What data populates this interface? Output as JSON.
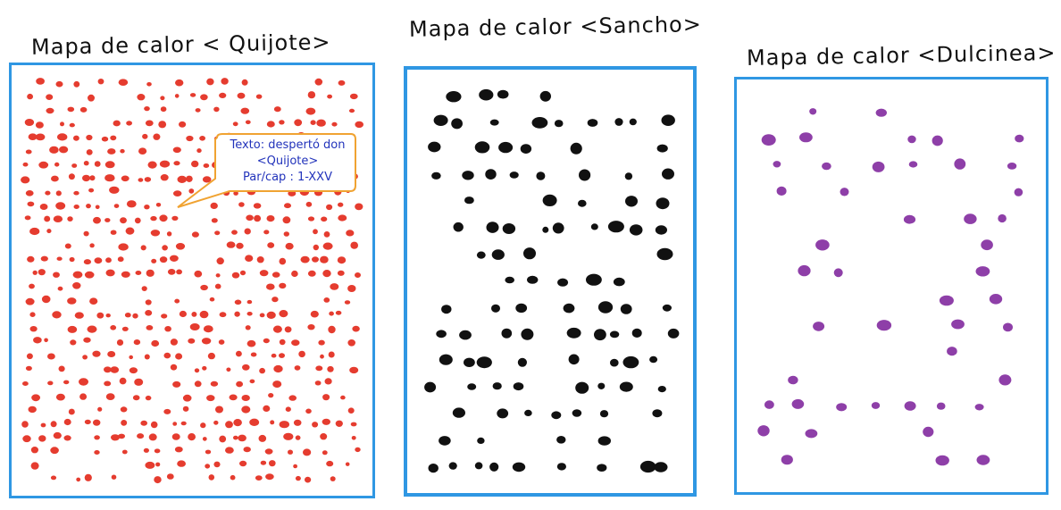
{
  "maps": [
    {
      "title": "Mapa de calor < Quijote>",
      "dot_color": "#e53c2f",
      "border_color": "#2f97e3",
      "density": "high",
      "callout": {
        "line1": "Texto: despertó don",
        "line2": "<Quijote>",
        "line3": "Par/cap : 1-XXV",
        "border_color": "#f0a332",
        "text_color": "#2233bb"
      }
    },
    {
      "title": "Mapa de calor <Sancho>",
      "dot_color": "#111111",
      "border_color": "#2f97e3",
      "density": "medium"
    },
    {
      "title": "Mapa de calor <Dulcinea>",
      "dot_color": "#8e3fa8",
      "border_color": "#2f97e3",
      "density": "low"
    }
  ]
}
